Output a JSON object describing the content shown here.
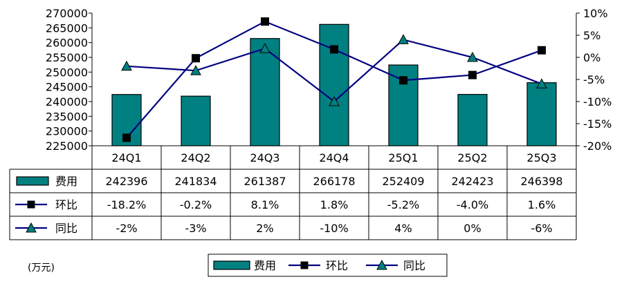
{
  "chart_data": {
    "type": "bar",
    "categories": [
      "24Q1",
      "24Q2",
      "24Q3",
      "24Q4",
      "25Q1",
      "25Q2",
      "25Q3"
    ],
    "series": [
      {
        "name": "费用",
        "type": "bar",
        "axis": "left",
        "values": [
          242396,
          241834,
          261387,
          266178,
          252409,
          242423,
          246398
        ],
        "labels": [
          "242396",
          "241834",
          "261387",
          "266178",
          "252409",
          "242423",
          "246398"
        ],
        "color": "#008080"
      },
      {
        "name": "环比",
        "type": "line",
        "axis": "right",
        "marker": "square",
        "values": [
          -18.2,
          -0.2,
          8.1,
          1.8,
          -5.2,
          -4.0,
          1.6
        ],
        "labels": [
          "-18.2%",
          "-0.2%",
          "8.1%",
          "1.8%",
          "-5.2%",
          "-4.0%",
          "1.6%"
        ],
        "color": "#000080"
      },
      {
        "name": "同比",
        "type": "line",
        "axis": "right",
        "marker": "triangle",
        "values": [
          -2,
          -3,
          2,
          -10,
          4,
          0,
          -6
        ],
        "labels": [
          "-2%",
          "-3%",
          "2%",
          "-10%",
          "4%",
          "0%",
          "-6%"
        ],
        "color": "#000080"
      }
    ],
    "y_left": {
      "min": 225000,
      "max": 270000,
      "step": 5000,
      "ticks": [
        "225000",
        "230000",
        "235000",
        "240000",
        "245000",
        "250000",
        "255000",
        "260000",
        "265000",
        "270000"
      ]
    },
    "y_right": {
      "min": -20,
      "max": 10,
      "step": 5,
      "ticks": [
        "-20%",
        "-15%",
        "-10%",
        "-5%",
        "0%",
        "5%",
        "10%"
      ]
    },
    "unit_label": "(万元)",
    "legend_position": "bottom",
    "data_table": true,
    "grid": false
  }
}
